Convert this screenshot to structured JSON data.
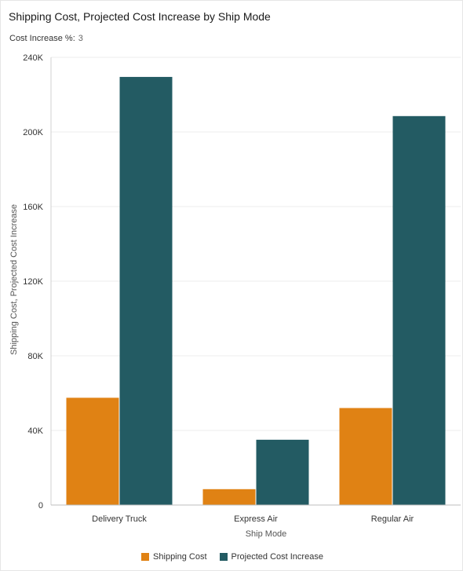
{
  "header": {
    "title": "Shipping Cost, Projected Cost Increase by Ship Mode"
  },
  "parameter": {
    "label": "Cost Increase %:",
    "value": "3"
  },
  "chart_data": {
    "type": "bar",
    "title": "Shipping Cost, Projected Cost Increase by Ship Mode",
    "xlabel": "Ship Mode",
    "ylabel": "Shipping Cost, Projected Cost Increase",
    "categories": [
      "Delivery Truck",
      "Express Air",
      "Regular Air"
    ],
    "series": [
      {
        "name": "Shipping Cost",
        "color": "#e08214",
        "values": [
          57500,
          8500,
          52000
        ]
      },
      {
        "name": "Projected Cost Increase",
        "color": "#235b63",
        "values": [
          229500,
          35000,
          208500
        ]
      }
    ],
    "ylim": [
      0,
      240000
    ],
    "yticks": [
      0,
      40000,
      80000,
      120000,
      160000,
      200000,
      240000
    ],
    "ytick_labels": [
      "0",
      "40K",
      "80K",
      "120K",
      "160K",
      "200K",
      "240K"
    ],
    "grid": true,
    "legend_position": "bottom-center"
  }
}
